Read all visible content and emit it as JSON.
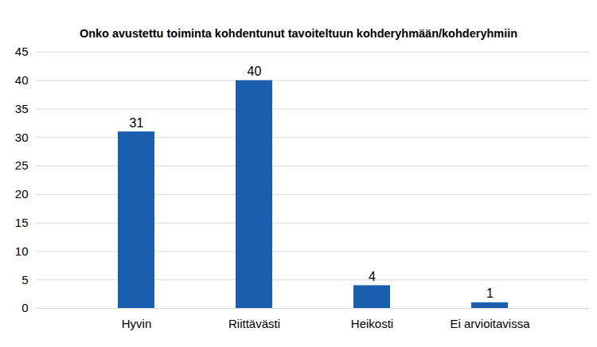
{
  "chart_data": {
    "type": "bar",
    "title": "Onko avustettu toiminta kohdentunut tavoiteltuun kohderyhmään/kohderyhmiin",
    "categories": [
      "Hyvin",
      "Riittävästi",
      "Heikosti",
      "Ei arvioitavissa"
    ],
    "values": [
      31,
      40,
      4,
      1
    ],
    "color": "#1a5fad",
    "ylim": [
      0,
      45
    ],
    "yticks": [
      0,
      5,
      10,
      15,
      20,
      25,
      30,
      35,
      40,
      45
    ],
    "grid": true,
    "data_labels": true
  }
}
